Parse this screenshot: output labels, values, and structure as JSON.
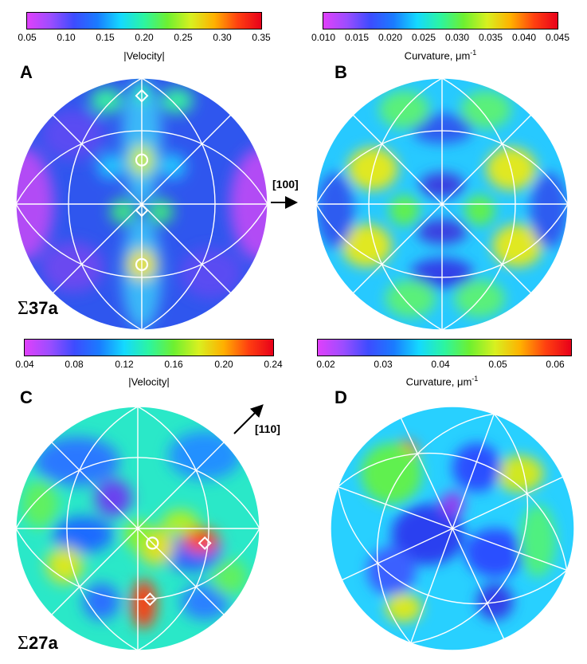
{
  "colorbars": [
    {
      "id": "A",
      "ticks": [
        "0.05",
        "0.10",
        "0.15",
        "0.20",
        "0.25",
        "0.30",
        "0.35"
      ],
      "caption": "|Velocity|",
      "unit_sup": ""
    },
    {
      "id": "B",
      "ticks": [
        "0.010",
        "0.015",
        "0.020",
        "0.025",
        "0.030",
        "0.035",
        "0.040",
        "0.045"
      ],
      "caption": "Curvature, μm",
      "unit_sup": "-1"
    },
    {
      "id": "C",
      "ticks": [
        "0.04",
        "0.08",
        "0.12",
        "0.16",
        "0.20",
        "0.24"
      ],
      "caption": "|Velocity|",
      "unit_sup": ""
    },
    {
      "id": "D",
      "ticks": [
        "0.02",
        "0.03",
        "0.04",
        "0.05",
        "0.06"
      ],
      "caption": "Curvature, μm",
      "unit_sup": "-1"
    }
  ],
  "panels": [
    {
      "label": "A"
    },
    {
      "label": "B"
    },
    {
      "label": "C"
    },
    {
      "label": "D"
    }
  ],
  "boundaries": [
    {
      "sigma": "Σ",
      "name": "37a"
    },
    {
      "sigma": "Σ",
      "name": "27a"
    }
  ],
  "directions": [
    "[100]",
    "[110]"
  ],
  "colors": {
    "lines": "#ffffff",
    "gradient": [
      "#e040fb",
      "#9c4dff",
      "#3d4cff",
      "#1a7bff",
      "#14d9ff",
      "#2cf5a0",
      "#6ef030",
      "#d8f020",
      "#ffb000",
      "#ff4010",
      "#e8001a"
    ]
  }
}
